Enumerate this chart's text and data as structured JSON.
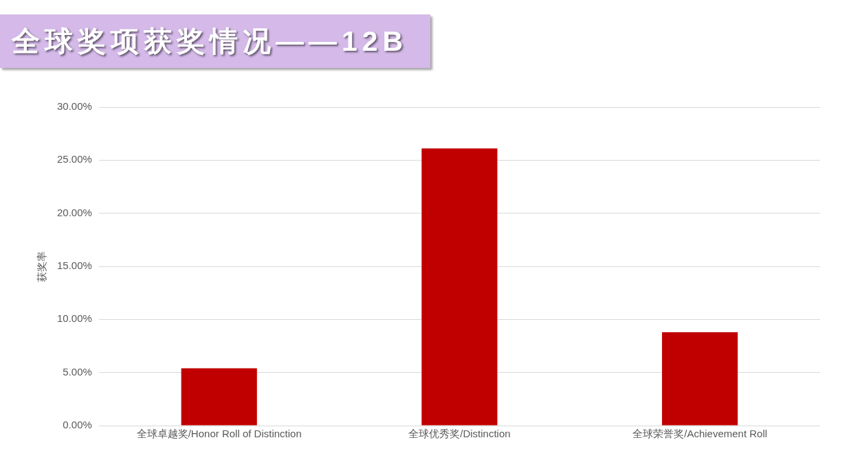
{
  "chart_data": {
    "type": "bar",
    "title": "全球奖项获奖情况——12B",
    "ylabel": "获奖率",
    "categories": [
      "全球卓越奖/Honor Roll of Distinction",
      "全球优秀奖/Distinction",
      "全球荣誉奖/Achievement Roll"
    ],
    "values": [
      5.4,
      26.1,
      8.8
    ],
    "color": "#c00000",
    "ylim": [
      0,
      30
    ],
    "yticks": [
      {
        "value": 0,
        "label": "0.00%"
      },
      {
        "value": 5,
        "label": "5.00%"
      },
      {
        "value": 10,
        "label": "10.00%"
      },
      {
        "value": 15,
        "label": "15.00%"
      },
      {
        "value": 20,
        "label": "20.00%"
      },
      {
        "value": 25,
        "label": "25.00%"
      },
      {
        "value": 30,
        "label": "30.00%"
      }
    ],
    "grid": "y"
  }
}
